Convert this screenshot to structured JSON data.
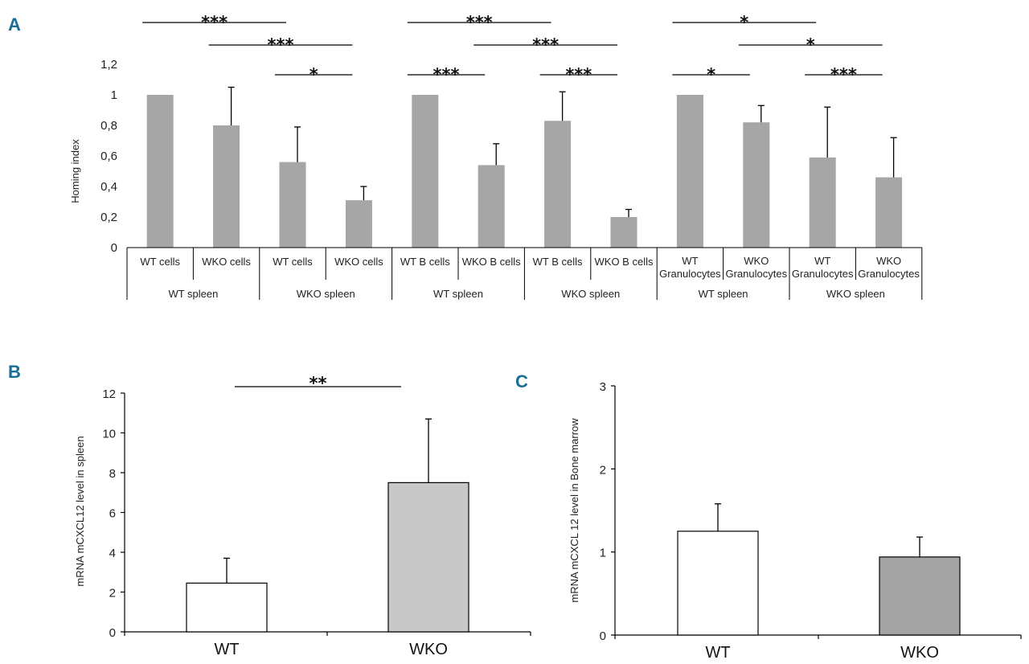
{
  "colors": {
    "panel_letter": "#1a6f96",
    "gray_bar": "#a6a6a6",
    "light_bar": "#c8c8c8",
    "dark_bar": "#a3a3a3",
    "white_bar": "#ffffff",
    "axis": "#000000"
  },
  "chart_data": [
    {
      "panel": "A",
      "type": "bar",
      "ylabel": "Homing index",
      "ylim": [
        0,
        1.2
      ],
      "yticks": [
        "0",
        "0,2",
        "0,4",
        "0,6",
        "0,8",
        "1",
        "1,2"
      ],
      "bars": [
        {
          "label": [
            "WT cells"
          ],
          "value": 1.0,
          "error": 0
        },
        {
          "label": [
            "WKO cells"
          ],
          "value": 0.8,
          "error": 0.25
        },
        {
          "label": [
            "WT cells"
          ],
          "value": 0.56,
          "error": 0.23
        },
        {
          "label": [
            "WKO cells"
          ],
          "value": 0.31,
          "error": 0.09
        },
        {
          "label": [
            "WT B cells"
          ],
          "value": 1.0,
          "error": 0
        },
        {
          "label": [
            "WKO B cells"
          ],
          "value": 0.54,
          "error": 0.14
        },
        {
          "label": [
            "WT B cells"
          ],
          "value": 0.83,
          "error": 0.19
        },
        {
          "label": [
            "WKO B cells"
          ],
          "value": 0.2,
          "error": 0.05
        },
        {
          "label": [
            "WT",
            "Granulocytes"
          ],
          "value": 1.0,
          "error": 0
        },
        {
          "label": [
            "WKO",
            "Granulocytes"
          ],
          "value": 0.82,
          "error": 0.11
        },
        {
          "label": [
            "WT",
            "Granulocytes"
          ],
          "value": 0.59,
          "error": 0.33
        },
        {
          "label": [
            "WKO",
            "Granulocytes"
          ],
          "value": 0.46,
          "error": 0.26
        }
      ],
      "groups": [
        "WT spleen",
        "WKO spleen",
        "WT spleen",
        "WKO spleen",
        "WT spleen",
        "WKO spleen"
      ],
      "significance": [
        {
          "from": 0,
          "to": 2,
          "level": 0,
          "label": "***"
        },
        {
          "from": 1,
          "to": 3,
          "level": 1,
          "label": "***"
        },
        {
          "from": 2,
          "to": 3,
          "level": 2,
          "label": "*"
        },
        {
          "from": 4,
          "to": 6,
          "level": 0,
          "label": "***"
        },
        {
          "from": 5,
          "to": 7,
          "level": 1,
          "label": "***"
        },
        {
          "from": 4,
          "to": 5,
          "level": 2,
          "label": "***"
        },
        {
          "from": 6,
          "to": 7,
          "level": 2,
          "label": "***"
        },
        {
          "from": 8,
          "to": 10,
          "level": 0,
          "label": "*"
        },
        {
          "from": 9,
          "to": 11,
          "level": 1,
          "label": "*"
        },
        {
          "from": 8,
          "to": 9,
          "level": 2,
          "label": "*"
        },
        {
          "from": 10,
          "to": 11,
          "level": 2,
          "label": "***"
        }
      ]
    },
    {
      "panel": "B",
      "type": "bar",
      "ylabel": "mRNA mCXCL12 level in spleen",
      "ylim": [
        0,
        12
      ],
      "yticks": [
        "0",
        "2",
        "4",
        "6",
        "8",
        "10",
        "12"
      ],
      "categories": [
        "WT",
        "WKO"
      ],
      "values": [
        2.45,
        7.5
      ],
      "errors": [
        1.25,
        3.2
      ],
      "significance": [
        {
          "from": 0,
          "to": 1,
          "label": "**"
        }
      ]
    },
    {
      "panel": "C",
      "type": "bar",
      "ylabel": "mRNA mCXCL 12 level in Bone marrow",
      "ylim": [
        0,
        3
      ],
      "yticks": [
        "0",
        "1",
        "2",
        "3"
      ],
      "categories": [
        "WT",
        "WKO"
      ],
      "values": [
        1.25,
        0.94
      ],
      "errors": [
        0.33,
        0.24
      ]
    }
  ]
}
